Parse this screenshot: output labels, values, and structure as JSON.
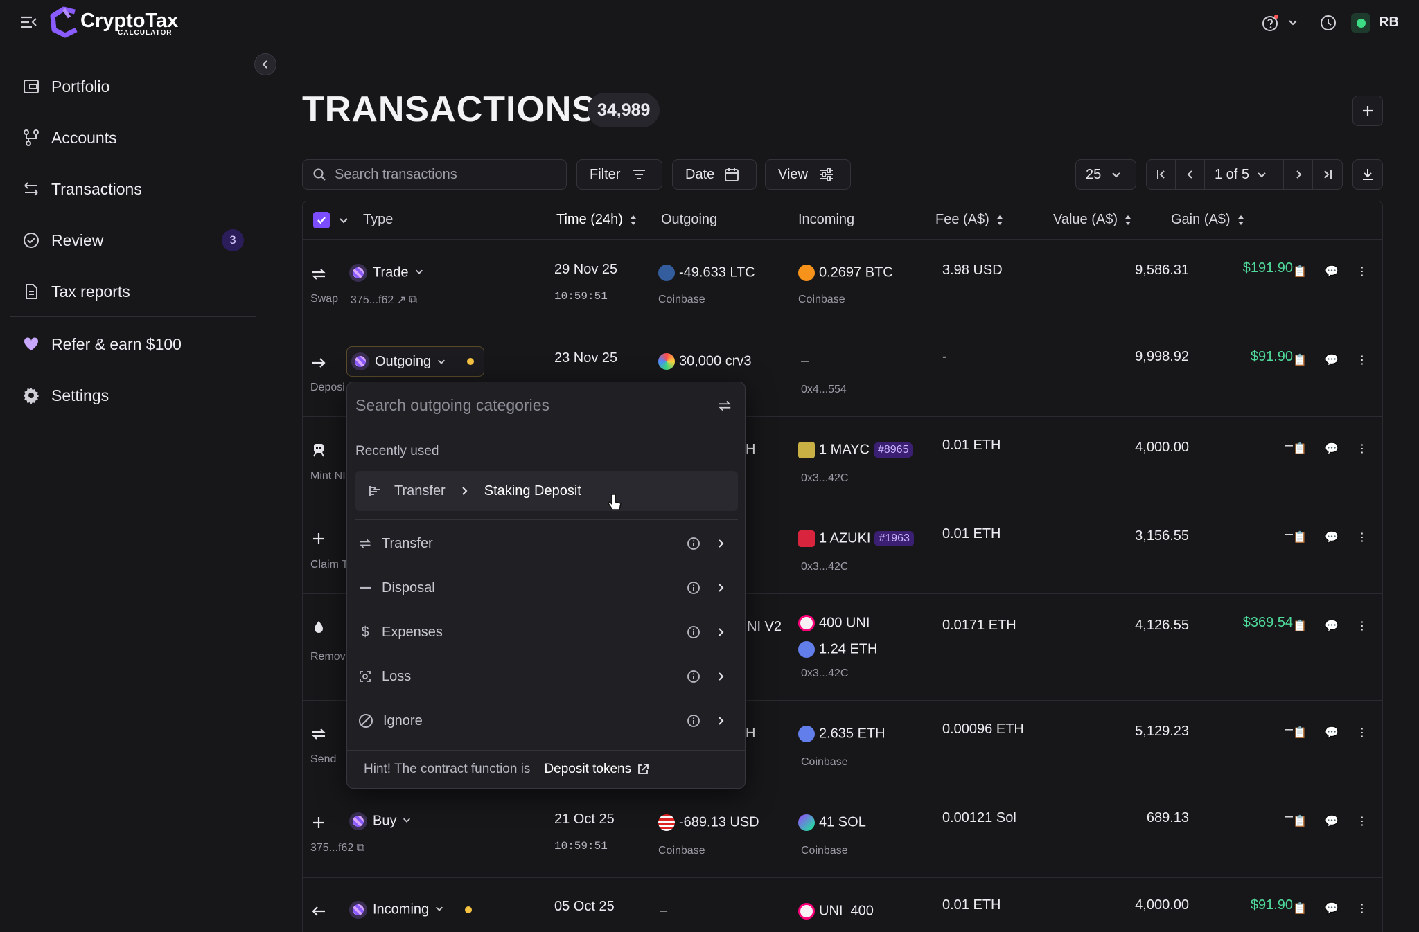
{
  "app": {
    "logo_text": "CryptoTax",
    "logo_sub": "CALCULATOR",
    "user_initials": "RB"
  },
  "sidebar": {
    "items": [
      {
        "label": "Portfolio"
      },
      {
        "label": "Accounts"
      },
      {
        "label": "Transactions"
      },
      {
        "label": "Review",
        "badge": "3"
      },
      {
        "label": "Tax reports"
      },
      {
        "label": "Refer & earn $100"
      },
      {
        "label": "Settings"
      }
    ]
  },
  "main": {
    "title": "TRANSACTIONS",
    "count": "34,989",
    "search_placeholder": "Search transactions",
    "filter_label": "Filter",
    "date_label": "Date",
    "view_label": "View",
    "page_size": "25",
    "page_indicator": "1 of 5"
  },
  "table": {
    "headers": [
      "Type",
      "Time (24h)",
      "Outgoing",
      "Incoming",
      "Fee (A$)",
      "Value (A$)",
      "Gain (A$)"
    ],
    "rows": [
      {
        "category": "Trade",
        "sub": "Swap",
        "hash": "375...f62",
        "date": "29 Nov 25",
        "time": "10:59:51",
        "out": "-49.633 LTC",
        "out_src": "Coinbase",
        "in": "0.2697 BTC",
        "in_src": "Coinbase",
        "fee": "3.98 USD",
        "value": "9,586.31",
        "gain": "$191.90"
      },
      {
        "category": "Outgoing",
        "sub": "Deposi",
        "date": "23 Nov 25",
        "out": "30,000 crv3",
        "in": "–",
        "in_src": "0x4...554",
        "fee": "-",
        "value": "9,998.92",
        "gain": "$91.90"
      },
      {
        "sub": "Mint NI",
        "out_frag": "H",
        "in": "1 MAYC",
        "in_tag": "#8965",
        "in_src": "0x3...42C",
        "fee": "0.01 ETH",
        "value": "4,000.00",
        "gain": "–"
      },
      {
        "sub": "Claim T",
        "in": "1 AZUKI",
        "in_tag": "#1963",
        "in_src": "0x3...42C",
        "fee": "0.01 ETH",
        "value": "3,156.55",
        "gain": "–"
      },
      {
        "sub": "Remov",
        "out_frag": "NI V2",
        "in": "400 UNI",
        "in2": "1.24 ETH",
        "in_src": "0x3...42C",
        "fee": "0.0171 ETH",
        "value": "4,126.55",
        "gain": "$369.54"
      },
      {
        "sub": "Send",
        "out_frag": "H",
        "in": "2.635 ETH",
        "in_src": "Coinbase",
        "fee": "0.00096 ETH",
        "value": "5,129.23",
        "gain": "–"
      },
      {
        "category": "Buy",
        "hash": "375...f62",
        "date": "21 Oct 25",
        "time": "10:59:51",
        "out": "-689.13 USD",
        "out_src": "Coinbase",
        "in": "41 SOL",
        "in_src": "Coinbase",
        "fee": "0.00121 Sol",
        "value": "689.13",
        "gain": "–"
      },
      {
        "category": "Incoming",
        "date": "05 Oct 25",
        "out": "–",
        "in": "UNI  400",
        "fee": "0.01 ETH",
        "value": "4,000.00",
        "gain": "$91.90"
      }
    ]
  },
  "dropdown": {
    "search_placeholder": "Search outgoing categories",
    "recent_label": "Recently used",
    "recent_parent": "Transfer",
    "recent_child": "Staking Deposit",
    "items": [
      "Transfer",
      "Disposal",
      "Expenses",
      "Loss",
      "Ignore"
    ],
    "hint_prefix": "Hint! The contract function is",
    "hint_link": "Deposit tokens"
  },
  "colors": {
    "accent": "#8a5cff",
    "gain": "#4fd99a",
    "background": "#17171a"
  }
}
